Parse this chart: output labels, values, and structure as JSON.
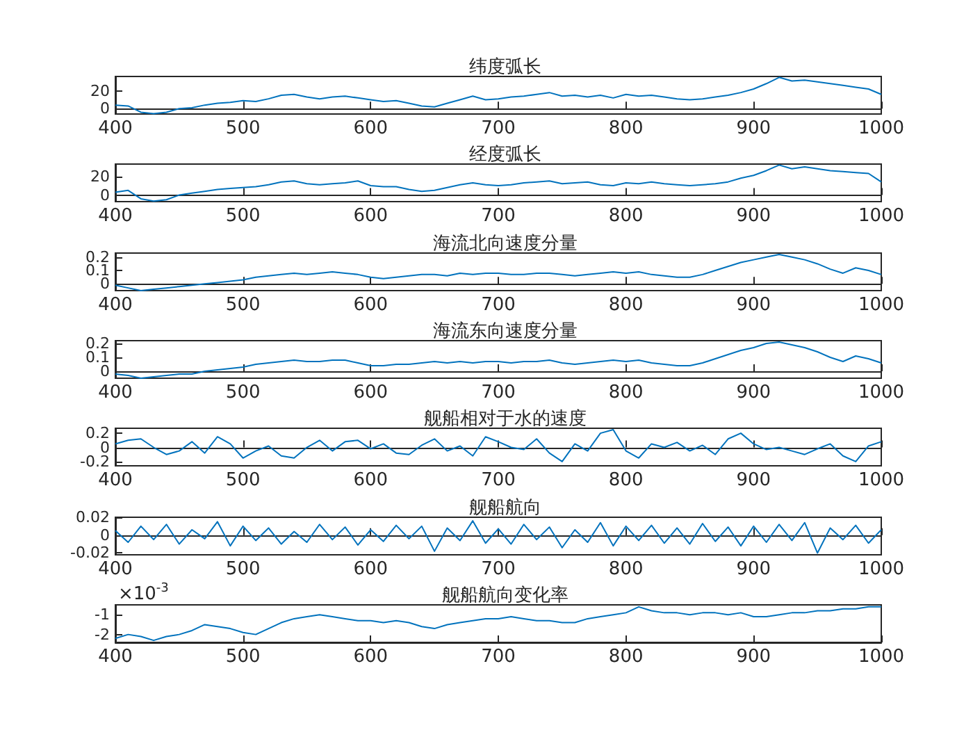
{
  "chart_data": [
    {
      "type": "line",
      "title": "纬度弧长",
      "color": "#0072bd",
      "xlim": [
        400,
        1000
      ],
      "xticks": [
        400,
        500,
        600,
        700,
        800,
        900,
        1000
      ],
      "ylim": [
        -6,
        36
      ],
      "yticks": [
        0,
        20
      ],
      "x": [
        400,
        410,
        420,
        430,
        440,
        450,
        460,
        470,
        480,
        490,
        500,
        510,
        520,
        530,
        540,
        550,
        560,
        570,
        580,
        590,
        600,
        610,
        620,
        630,
        640,
        650,
        660,
        670,
        680,
        690,
        700,
        710,
        720,
        730,
        740,
        750,
        760,
        770,
        780,
        790,
        800,
        810,
        820,
        830,
        840,
        850,
        860,
        870,
        880,
        890,
        900,
        910,
        920,
        930,
        940,
        950,
        960,
        970,
        980,
        990,
        1000
      ],
      "values": [
        4,
        3,
        -4,
        -5.6,
        -4,
        0,
        1,
        4,
        6,
        7,
        9,
        8,
        11,
        15,
        16,
        13,
        11,
        13,
        14,
        12,
        10,
        8,
        9,
        6,
        3,
        2,
        6,
        10,
        14,
        10,
        11,
        13,
        14,
        16,
        18,
        14,
        15,
        13,
        15,
        12,
        16,
        14,
        15,
        13,
        11,
        10,
        11,
        13,
        15,
        18,
        22,
        28,
        35,
        31,
        32,
        30,
        28,
        26,
        24,
        22,
        16
      ]
    },
    {
      "type": "line",
      "title": "经度弧长",
      "color": "#0072bd",
      "xlim": [
        400,
        1000
      ],
      "xticks": [
        400,
        500,
        600,
        700,
        800,
        900,
        1000
      ],
      "ylim": [
        -7,
        33
      ],
      "yticks": [
        0,
        20
      ],
      "x": [
        400,
        410,
        420,
        430,
        440,
        450,
        460,
        470,
        480,
        490,
        500,
        510,
        520,
        530,
        540,
        550,
        560,
        570,
        580,
        590,
        600,
        610,
        620,
        630,
        640,
        650,
        660,
        670,
        680,
        690,
        700,
        710,
        720,
        730,
        740,
        750,
        760,
        770,
        780,
        790,
        800,
        810,
        820,
        830,
        840,
        850,
        860,
        870,
        880,
        890,
        900,
        910,
        920,
        930,
        940,
        950,
        960,
        970,
        980,
        990,
        1000
      ],
      "values": [
        3,
        5,
        -4,
        -6.5,
        -5,
        0,
        2,
        4,
        6,
        7,
        8,
        9,
        11,
        14,
        15,
        12,
        11,
        12,
        13,
        15,
        10,
        9,
        9,
        6,
        4,
        5,
        8,
        11,
        13,
        11,
        10,
        11,
        13,
        14,
        15,
        12,
        13,
        14,
        11,
        10,
        13,
        12,
        14,
        12,
        11,
        10,
        11,
        12,
        14,
        18,
        21,
        26,
        32,
        28,
        30,
        28,
        26,
        25,
        24,
        23,
        14
      ]
    },
    {
      "type": "line",
      "title": "海流北向速度分量",
      "color": "#0072bd",
      "xlim": [
        400,
        1000
      ],
      "xticks": [
        400,
        500,
        600,
        700,
        800,
        900,
        1000
      ],
      "ylim": [
        -0.05,
        0.23
      ],
      "yticks": [
        0,
        0.1,
        0.2
      ],
      "x": [
        400,
        410,
        420,
        430,
        440,
        450,
        460,
        470,
        480,
        490,
        500,
        510,
        520,
        530,
        540,
        550,
        560,
        570,
        580,
        590,
        600,
        610,
        620,
        630,
        640,
        650,
        660,
        670,
        680,
        690,
        700,
        710,
        720,
        730,
        740,
        750,
        760,
        770,
        780,
        790,
        800,
        810,
        820,
        830,
        840,
        850,
        860,
        870,
        880,
        890,
        900,
        910,
        920,
        930,
        940,
        950,
        960,
        970,
        980,
        990,
        1000
      ],
      "values": [
        -0.01,
        -0.03,
        -0.05,
        -0.04,
        -0.03,
        -0.02,
        -0.01,
        0,
        0.01,
        0.02,
        0.03,
        0.05,
        0.06,
        0.07,
        0.08,
        0.07,
        0.08,
        0.09,
        0.08,
        0.07,
        0.05,
        0.04,
        0.05,
        0.06,
        0.07,
        0.07,
        0.06,
        0.08,
        0.07,
        0.08,
        0.08,
        0.07,
        0.07,
        0.08,
        0.08,
        0.07,
        0.06,
        0.07,
        0.08,
        0.09,
        0.08,
        0.09,
        0.07,
        0.06,
        0.05,
        0.05,
        0.07,
        0.1,
        0.13,
        0.16,
        0.18,
        0.2,
        0.22,
        0.2,
        0.18,
        0.15,
        0.11,
        0.08,
        0.12,
        0.1,
        0.07
      ]
    },
    {
      "type": "line",
      "title": "海流东向速度分量",
      "color": "#0072bd",
      "xlim": [
        400,
        1000
      ],
      "xticks": [
        400,
        500,
        600,
        700,
        800,
        900,
        1000
      ],
      "ylim": [
        -0.05,
        0.22
      ],
      "yticks": [
        0,
        0.1,
        0.2
      ],
      "x": [
        400,
        410,
        420,
        430,
        440,
        450,
        460,
        470,
        480,
        490,
        500,
        510,
        520,
        530,
        540,
        550,
        560,
        570,
        580,
        590,
        600,
        610,
        620,
        630,
        640,
        650,
        660,
        670,
        680,
        690,
        700,
        710,
        720,
        730,
        740,
        750,
        760,
        770,
        780,
        790,
        800,
        810,
        820,
        830,
        840,
        850,
        860,
        870,
        880,
        890,
        900,
        910,
        920,
        930,
        940,
        950,
        960,
        970,
        980,
        990,
        1000
      ],
      "values": [
        -0.02,
        -0.03,
        -0.05,
        -0.04,
        -0.03,
        -0.02,
        -0.02,
        0,
        0.01,
        0.02,
        0.03,
        0.05,
        0.06,
        0.07,
        0.08,
        0.07,
        0.07,
        0.08,
        0.08,
        0.06,
        0.04,
        0.04,
        0.05,
        0.05,
        0.06,
        0.07,
        0.06,
        0.07,
        0.06,
        0.07,
        0.07,
        0.06,
        0.07,
        0.07,
        0.08,
        0.06,
        0.05,
        0.06,
        0.07,
        0.08,
        0.07,
        0.08,
        0.06,
        0.05,
        0.04,
        0.04,
        0.06,
        0.09,
        0.12,
        0.15,
        0.17,
        0.2,
        0.21,
        0.19,
        0.17,
        0.14,
        0.1,
        0.07,
        0.11,
        0.09,
        0.06
      ]
    },
    {
      "type": "line",
      "title": "舰船相对于水的速度",
      "color": "#0072bd",
      "xlim": [
        400,
        1000
      ],
      "xticks": [
        400,
        500,
        600,
        700,
        800,
        900,
        1000
      ],
      "ylim": [
        -0.26,
        0.27
      ],
      "yticks": [
        -0.2,
        0,
        0.2
      ],
      "x": [
        400,
        410,
        420,
        430,
        440,
        450,
        460,
        470,
        480,
        490,
        500,
        510,
        520,
        530,
        540,
        550,
        560,
        570,
        580,
        590,
        600,
        610,
        620,
        630,
        640,
        650,
        660,
        670,
        680,
        690,
        700,
        710,
        720,
        730,
        740,
        750,
        760,
        770,
        780,
        790,
        800,
        810,
        820,
        830,
        840,
        850,
        860,
        870,
        880,
        890,
        900,
        910,
        920,
        930,
        940,
        950,
        960,
        970,
        980,
        990,
        1000
      ],
      "values": [
        0.05,
        0.1,
        0.12,
        0,
        -0.1,
        -0.05,
        0.08,
        -0.08,
        0.15,
        0.05,
        -0.15,
        -0.05,
        0.02,
        -0.12,
        -0.15,
        0,
        0.1,
        -0.05,
        0.08,
        0.1,
        -0.02,
        0.05,
        -0.08,
        -0.1,
        0.03,
        0.12,
        -0.05,
        0.02,
        -0.12,
        0.15,
        0.08,
        0,
        -0.03,
        0.12,
        -0.08,
        -0.2,
        0.05,
        -0.05,
        0.2,
        0.25,
        -0.05,
        -0.15,
        0.05,
        0,
        0.07,
        -0.05,
        0.03,
        -0.1,
        0.12,
        0.2,
        0.05,
        -0.03,
        0,
        -0.05,
        -0.1,
        -0.02,
        0.05,
        -0.12,
        -0.2,
        0.02,
        0.08
      ]
    },
    {
      "type": "line",
      "title": "舰船航向",
      "color": "#0072bd",
      "xlim": [
        400,
        1000
      ],
      "xticks": [
        400,
        500,
        600,
        700,
        800,
        900,
        1000
      ],
      "ylim": [
        -0.022,
        0.02
      ],
      "yticks": [
        -0.02,
        0,
        0.02
      ],
      "x": [
        400,
        410,
        420,
        430,
        440,
        450,
        460,
        470,
        480,
        490,
        500,
        510,
        520,
        530,
        540,
        550,
        560,
        570,
        580,
        590,
        600,
        610,
        620,
        630,
        640,
        650,
        660,
        670,
        680,
        690,
        700,
        710,
        720,
        730,
        740,
        750,
        760,
        770,
        780,
        790,
        800,
        810,
        820,
        830,
        840,
        850,
        860,
        870,
        880,
        890,
        900,
        910,
        920,
        930,
        940,
        950,
        960,
        970,
        980,
        990,
        1000
      ],
      "values": [
        0.005,
        -0.008,
        0.01,
        -0.005,
        0.012,
        -0.01,
        0.006,
        -0.004,
        0.015,
        -0.012,
        0.01,
        -0.006,
        0.008,
        -0.01,
        0.004,
        -0.008,
        0.012,
        -0.005,
        0.009,
        -0.011,
        0.006,
        -0.007,
        0.011,
        -0.004,
        0.01,
        -0.018,
        0.008,
        -0.006,
        0.016,
        -0.009,
        0.007,
        -0.01,
        0.012,
        -0.005,
        0.009,
        -0.014,
        0.006,
        -0.008,
        0.014,
        -0.012,
        0.01,
        -0.006,
        0.011,
        -0.009,
        0.008,
        -0.01,
        0.013,
        -0.007,
        0.009,
        -0.012,
        0.01,
        -0.008,
        0.012,
        -0.006,
        0.014,
        -0.02,
        0.008,
        -0.005,
        0.011,
        -0.009,
        0.006
      ]
    },
    {
      "type": "line",
      "title": "舰船航向变化率",
      "color": "#0072bd",
      "annotations": [
        "×10$^{-3}$"
      ],
      "xlim": [
        400,
        1000
      ],
      "xticks": [
        400,
        500,
        600,
        700,
        800,
        900,
        1000
      ],
      "ylim": [
        -2.4,
        -0.5
      ],
      "yticks": [
        -2,
        -1
      ],
      "x": [
        400,
        410,
        420,
        430,
        440,
        450,
        460,
        470,
        480,
        490,
        500,
        510,
        520,
        530,
        540,
        550,
        560,
        570,
        580,
        590,
        600,
        610,
        620,
        630,
        640,
        650,
        660,
        670,
        680,
        690,
        700,
        710,
        720,
        730,
        740,
        750,
        760,
        770,
        780,
        790,
        800,
        810,
        820,
        830,
        840,
        850,
        860,
        870,
        880,
        890,
        900,
        910,
        920,
        930,
        940,
        950,
        960,
        970,
        980,
        990,
        1000
      ],
      "values": [
        -2.2,
        -2,
        -2.1,
        -2.3,
        -2.1,
        -2,
        -1.8,
        -1.5,
        -1.6,
        -1.7,
        -1.9,
        -2,
        -1.7,
        -1.4,
        -1.2,
        -1.1,
        -1,
        -1.1,
        -1.2,
        -1.3,
        -1.3,
        -1.4,
        -1.3,
        -1.4,
        -1.6,
        -1.7,
        -1.5,
        -1.4,
        -1.3,
        -1.2,
        -1.2,
        -1.1,
        -1.2,
        -1.3,
        -1.3,
        -1.4,
        -1.4,
        -1.2,
        -1.1,
        -1,
        -0.9,
        -0.6,
        -0.8,
        -0.9,
        -0.9,
        -1,
        -0.9,
        -0.9,
        -1,
        -0.9,
        -1.1,
        -1.1,
        -1,
        -0.9,
        -0.9,
        -0.8,
        -0.8,
        -0.7,
        -0.7,
        -0.6,
        -0.6
      ]
    }
  ]
}
